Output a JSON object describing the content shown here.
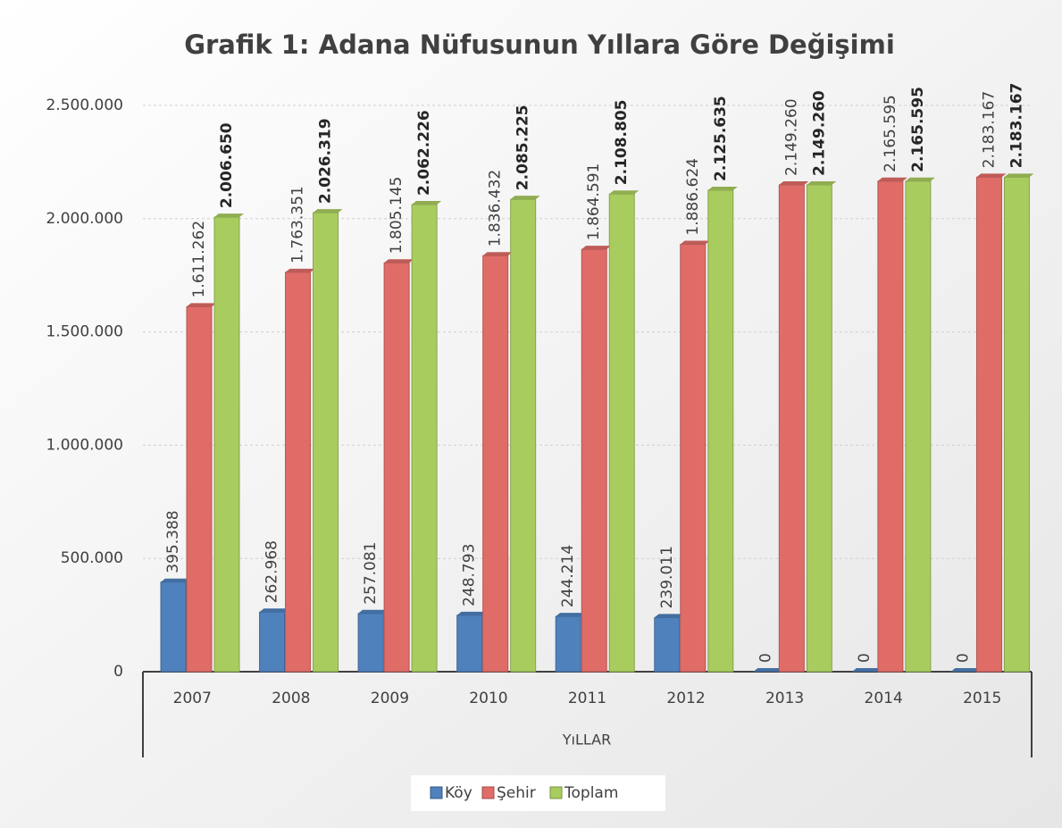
{
  "chart_data": {
    "type": "bar",
    "title": "Grafik 1: Adana Nüfusunun Yıllara Göre Değişimi",
    "x_label": "YıLLAR",
    "categories": [
      "2007",
      "2008",
      "2009",
      "2010",
      "2011",
      "2012",
      "2013",
      "2014",
      "2015"
    ],
    "series": [
      {
        "name": "Köy",
        "color": "#4f81bd",
        "values": [
          395388,
          262968,
          257081,
          248793,
          244214,
          239011,
          0,
          0,
          0
        ],
        "value_labels": [
          "395.388",
          "262.968",
          "257.081",
          "248.793",
          "244.214",
          "239.011",
          "0",
          "0",
          "0"
        ]
      },
      {
        "name": "Şehir",
        "color": "#e06c68",
        "values": [
          1611262,
          1763351,
          1805145,
          1836432,
          1864591,
          1886624,
          2149260,
          2165595,
          2183167
        ],
        "value_labels": [
          "1.611.262",
          "1.763.351",
          "1.805.145",
          "1.836.432",
          "1.864.591",
          "1.886.624",
          "2.149.260",
          "2.165.595",
          "2.183.167"
        ]
      },
      {
        "name": "Toplam",
        "color": "#a9cc5f",
        "values": [
          2006650,
          2026319,
          2062226,
          2085225,
          2108805,
          2125635,
          2149260,
          2165595,
          2183167
        ],
        "value_labels": [
          "2.006.650",
          "2.026.319",
          "2.062.226",
          "2.085.225",
          "2.108.805",
          "2.125.635",
          "2.149.260",
          "2.165.595",
          "2.183.167"
        ]
      }
    ],
    "ylim": [
      0,
      2500000
    ],
    "yticks": [
      0,
      {
        "value": 500000,
        "label": "500.000"
      },
      {
        "value": 1000000,
        "label": "1.000.000"
      },
      {
        "value": 1500000,
        "label": "1.500.000"
      },
      {
        "value": 2000000,
        "label": "2.000.000"
      },
      {
        "value": 2500000,
        "label": "2.500.000"
      }
    ],
    "grid": true,
    "legend": "bottom"
  }
}
